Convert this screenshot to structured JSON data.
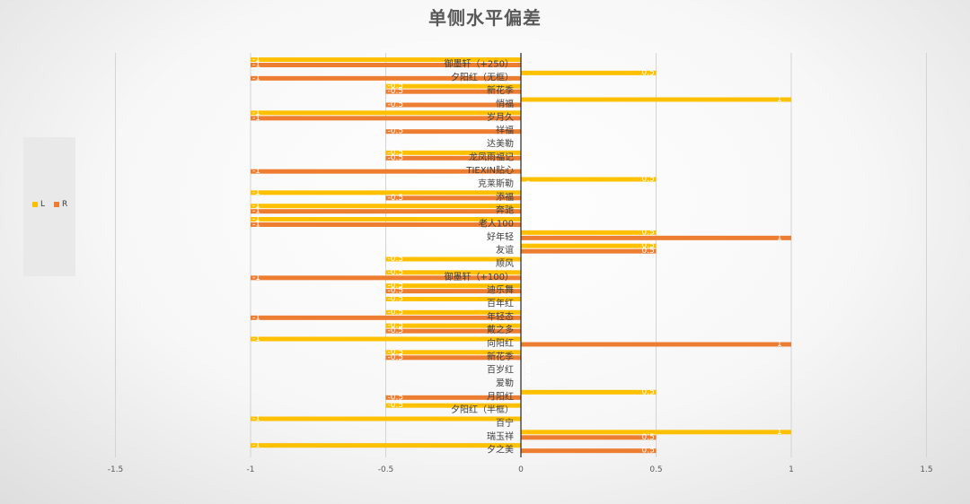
{
  "chart_data": {
    "type": "bar",
    "orientation": "horizontal",
    "title": "单侧水平偏差",
    "xlabel": "",
    "ylabel": "",
    "xlim": [
      -1.5,
      1.5
    ],
    "xticks": [
      "-1.5",
      "-1",
      "-0.5",
      "0",
      "0.5",
      "1",
      "1.5"
    ],
    "grid": true,
    "legend_position": "left",
    "categories": [
      "御墨轩（+250）",
      "夕阳红（无框）",
      "新花季",
      "悄福",
      "岁月久",
      "祥福",
      "达美勒",
      "龙凤雨福记",
      "TIEXIN贴心",
      "克莱斯勒",
      "添福",
      "奔驰",
      "老人100",
      "好年轻",
      "友谊",
      "顺风",
      "御墨轩（+100）",
      "迪乐舞",
      "百年红",
      "年轻态",
      "戴之多",
      "向阳红",
      "新花季",
      "百岁红",
      "爱勒",
      "月阳红",
      "夕阳红（半框）",
      "百宁",
      "瑞玉祥",
      "夕之美"
    ],
    "series": [
      {
        "name": "L",
        "color": "#FFC000",
        "values": [
          -1,
          0.5,
          -0.5,
          1,
          -1,
          0,
          0,
          -0.5,
          0,
          0.5,
          -1,
          -1,
          -1,
          0.5,
          0.5,
          -0.5,
          -0.5,
          -0.5,
          -0.5,
          -0.5,
          -0.5,
          -1,
          -0.5,
          0,
          0,
          0.5,
          -0.5,
          -1,
          1,
          -1
        ]
      },
      {
        "name": "R",
        "color": "#ED7D31",
        "values": [
          -1,
          -1,
          -0.5,
          -0.5,
          -1,
          -0.5,
          0,
          -0.5,
          -1,
          0,
          -0.5,
          -1,
          -1,
          1,
          0.5,
          0,
          -1,
          -0.5,
          0,
          -1,
          -0.5,
          1,
          -0.5,
          0,
          0,
          -0.5,
          0,
          0,
          0.5,
          0.5
        ]
      }
    ]
  }
}
